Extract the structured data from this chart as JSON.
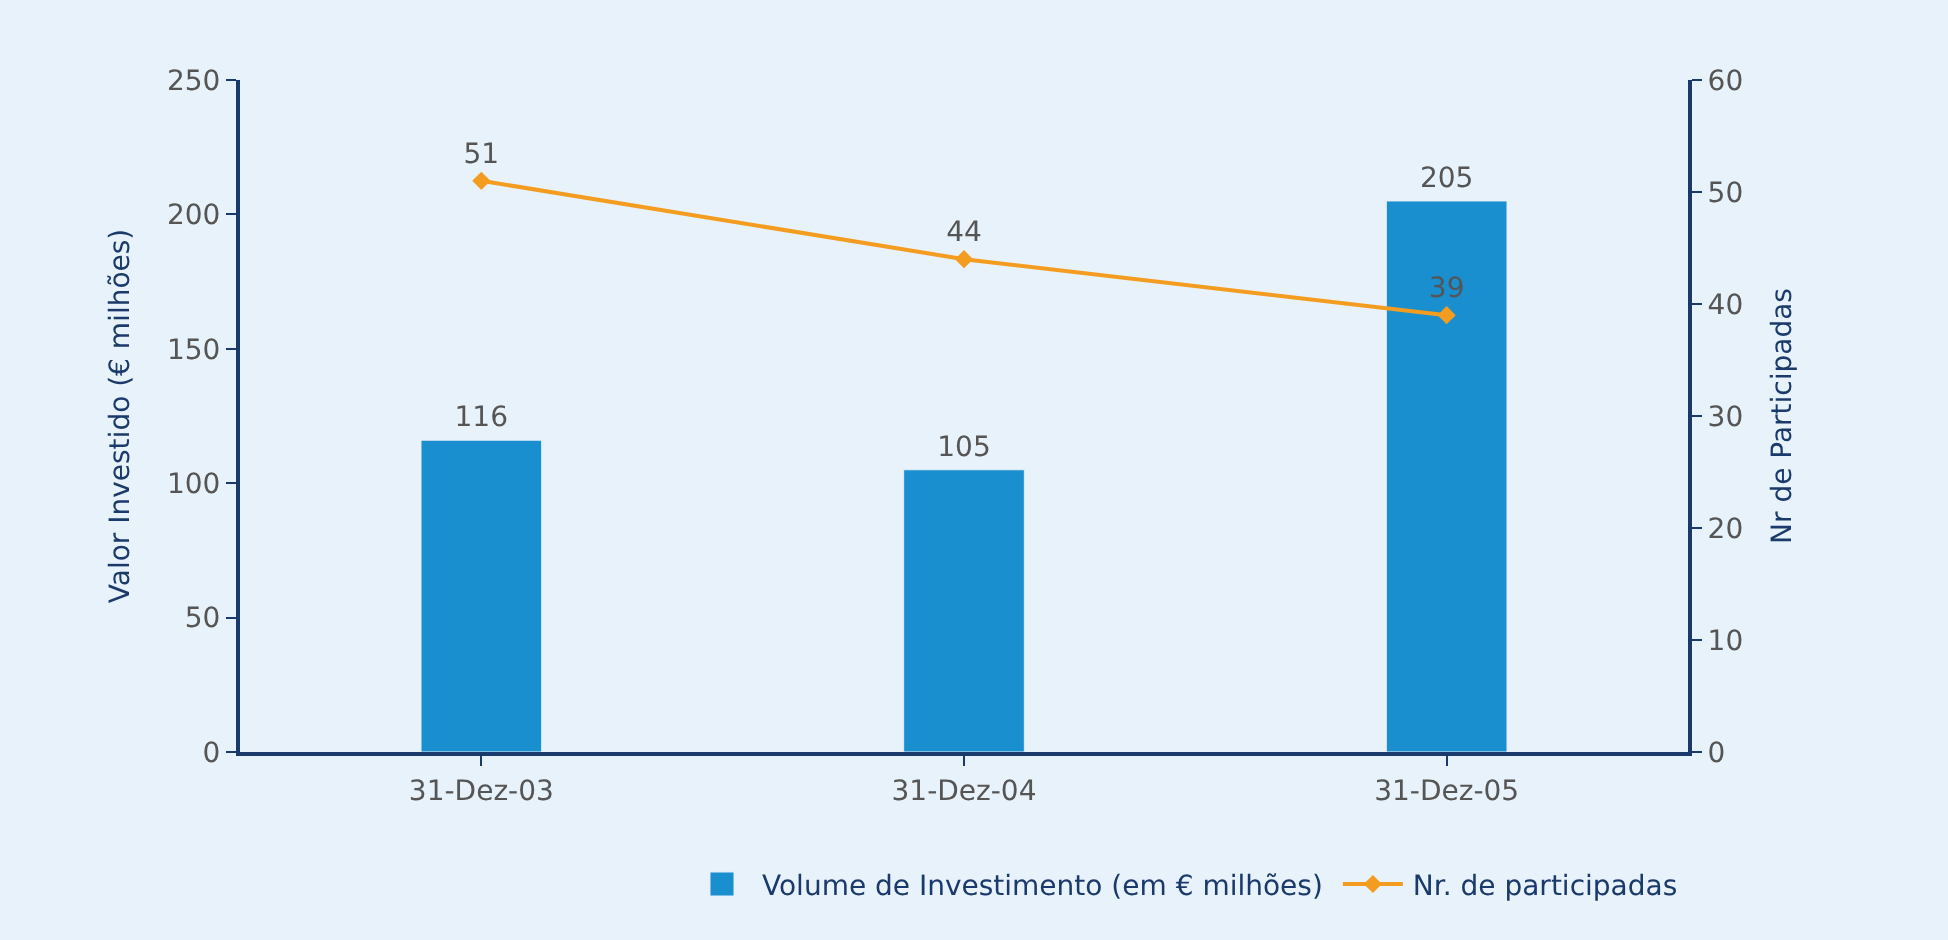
{
  "chart_data": {
    "type": "bar",
    "categories": [
      "31-Dez-03",
      "31-Dez-04",
      "31-Dez-05"
    ],
    "ylabel": "Valor Investido (€ milhões)",
    "y2label": "Nr de Participadas",
    "series": [
      {
        "name": "Volume de Investimento (em € milhões)",
        "color": "#1a8fd0",
        "values": [
          116,
          105,
          205
        ]
      },
      {
        "name": "Nr. de participadas",
        "type": "line",
        "axis": "y2",
        "color": "#f39c1f",
        "marker": "diamond",
        "values": [
          51,
          44,
          39
        ]
      }
    ],
    "data_labels": true,
    "ylim": [
      0,
      250
    ],
    "yticks": [
      0,
      50,
      100,
      150,
      200,
      250
    ],
    "y2lim": [
      0,
      60
    ],
    "y2ticks": [
      0,
      10,
      20,
      30,
      40,
      50,
      60
    ],
    "grid": false,
    "legend": "bottom"
  }
}
